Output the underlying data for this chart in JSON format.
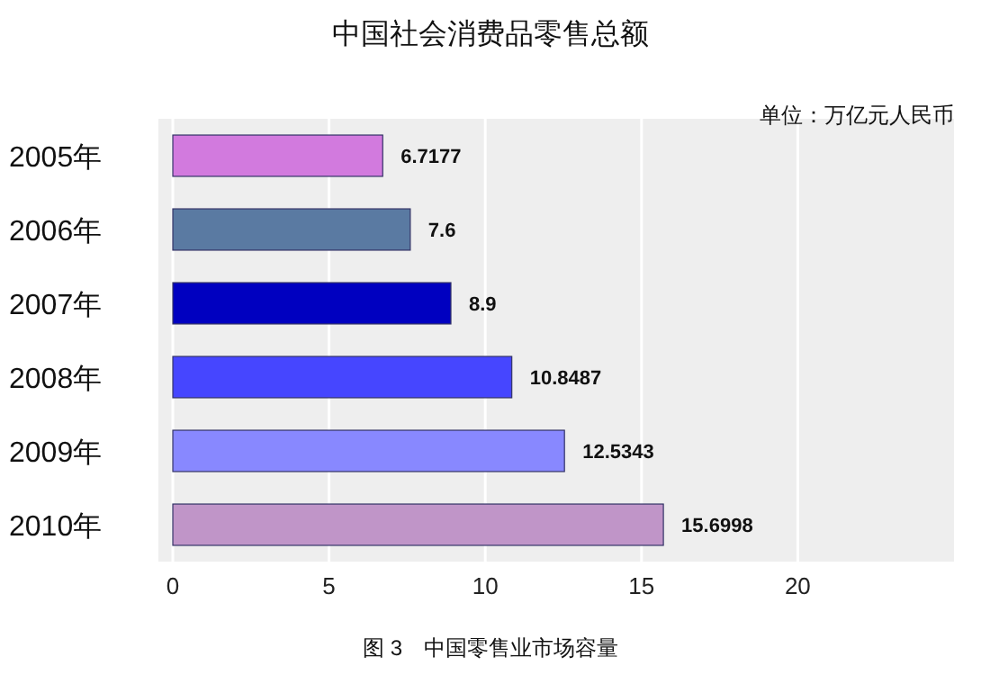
{
  "chart_data": {
    "type": "bar",
    "orientation": "horizontal",
    "title": "中国社会消费品零售总额",
    "annotations": [
      "单位：万亿元人民币",
      "图 3　中国零售业市场容量"
    ],
    "categories": [
      "2005年",
      "2006年",
      "2007年",
      "2008年",
      "2009年",
      "2010年"
    ],
    "values": [
      6.7177,
      7.6,
      8.9,
      10.8487,
      12.5343,
      15.6998
    ],
    "colors": [
      "#d27ade",
      "#5a7aa2",
      "#0000c0",
      "#4646ff",
      "#8888ff",
      "#c095c8"
    ],
    "xlim": [
      0,
      25
    ],
    "xticks": [
      0,
      5,
      10,
      15,
      20
    ],
    "grid": "x",
    "data_labels": true
  }
}
